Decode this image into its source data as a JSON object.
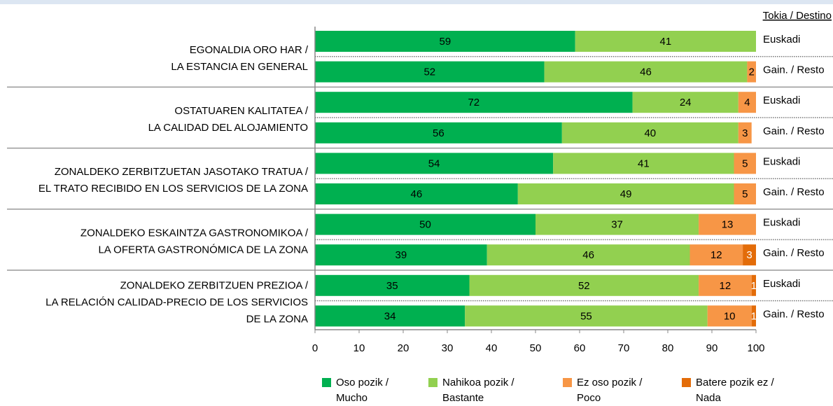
{
  "chart_data": {
    "type": "bar",
    "orientation": "horizontal",
    "stacked": true,
    "category_axis_title": "Tokia / Destino",
    "groups": [
      {
        "label_lines": [
          "EGONALDIA ORO HAR /",
          "LA ESTANCIA EN GENERAL"
        ]
      },
      {
        "label_lines": [
          "OSTATUAREN KALITATEA /",
          "LA CALIDAD DEL ALOJAMIENTO"
        ]
      },
      {
        "label_lines": [
          "ZONALDEKO ZERBITZUETAN JASOTAKO TRATUA /",
          "EL TRATO RECIBIDO EN LOS SERVICIOS DE LA ZONA"
        ]
      },
      {
        "label_lines": [
          "ZONALDEKO ESKAINTZA GASTRONOMIKOA /",
          "LA OFERTA GASTRONÓMICA DE LA ZONA"
        ]
      },
      {
        "label_lines": [
          "ZONALDEKO ZERBITZUEN PREZIOA /",
          "LA RELACIÓN CALIDAD-PRECIO DE LOS SERVICIOS",
          "DE LA ZONA"
        ]
      }
    ],
    "categories": [
      "Euskadi",
      "Gain. / Resto",
      "Euskadi",
      "Gain. / Resto",
      "Euskadi",
      "Gain. / Resto",
      "Euskadi",
      "Gain. / Resto",
      "Euskadi",
      "Gain. / Resto"
    ],
    "series": [
      {
        "name": "Oso pozik / Mucho",
        "color": "#00b050",
        "values": [
          59,
          52,
          72,
          56,
          54,
          46,
          50,
          39,
          35,
          34
        ]
      },
      {
        "name": "Nahikoa pozik / Bastante",
        "color": "#92d050",
        "values": [
          41,
          46,
          24,
          40,
          41,
          49,
          37,
          46,
          52,
          55
        ]
      },
      {
        "name": "Ez oso pozik / Poco",
        "color": "#f79646",
        "values": [
          null,
          2,
          4,
          3,
          5,
          5,
          13,
          12,
          12,
          10
        ]
      },
      {
        "name": "Batere pozik ez / Nada",
        "color": "#e36c09",
        "values": [
          null,
          null,
          null,
          null,
          null,
          null,
          null,
          3,
          1,
          1
        ]
      }
    ],
    "xlim": [
      0,
      100
    ],
    "xticks": [
      0,
      10,
      20,
      30,
      40,
      50,
      60,
      70,
      80,
      90,
      100
    ],
    "legend": "bottom"
  }
}
